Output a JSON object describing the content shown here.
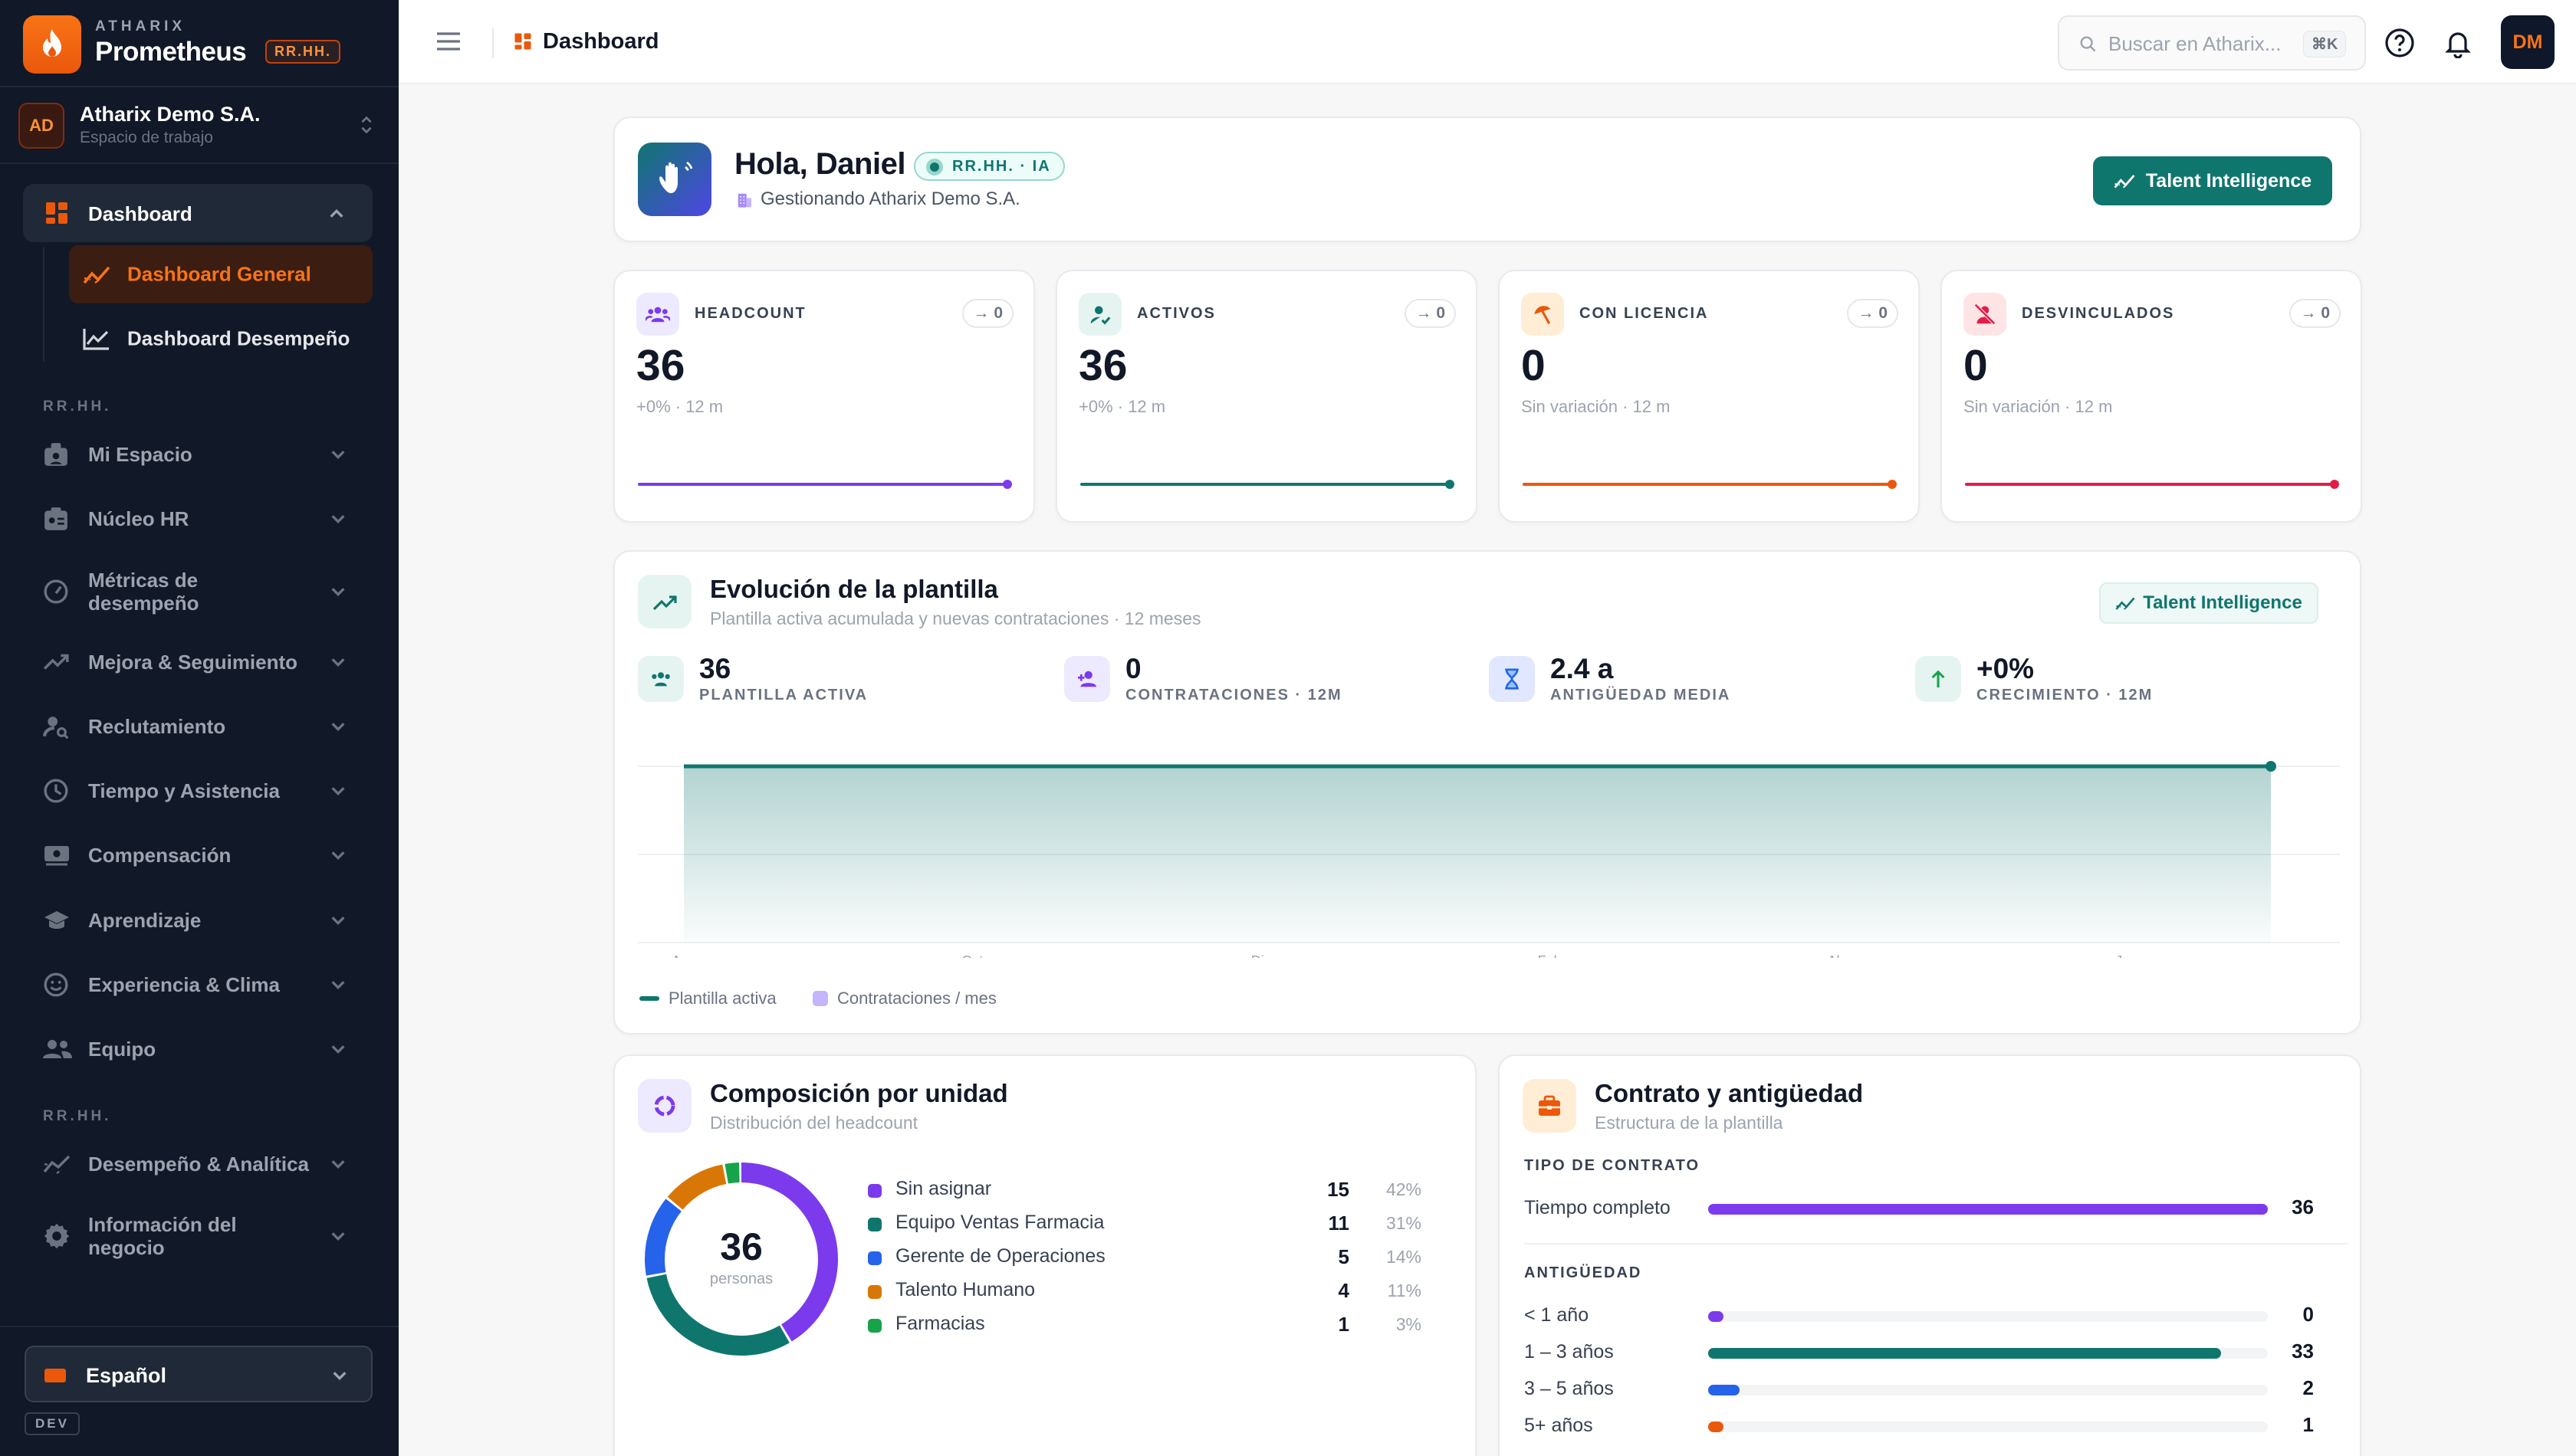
{
  "brand": {
    "company": "ATHARIX",
    "name": "Prometheus",
    "badge": "RR.HH."
  },
  "workspace": {
    "initials": "AD",
    "name": "Atharix Demo S.A.",
    "subtitle": "Espacio de trabajo"
  },
  "sidebar": {
    "dashboard_label": "Dashboard",
    "sub_items": [
      {
        "label": "Dashboard General",
        "icon": "trend-icon",
        "active": true
      },
      {
        "label": "Dashboard Desempeño",
        "icon": "chart-line-icon",
        "active": false
      }
    ],
    "section_1": "RR.HH.",
    "items": [
      {
        "label": "Mi Espacio",
        "icon": "id-badge-icon"
      },
      {
        "label": "Núcleo HR",
        "icon": "id-card-icon"
      },
      {
        "label": "Métricas de desempeño",
        "icon": "gauge-icon"
      },
      {
        "label": "Mejora & Seguimiento",
        "icon": "trending-up-icon"
      },
      {
        "label": "Reclutamiento",
        "icon": "person-search-icon"
      },
      {
        "label": "Tiempo y Asistencia",
        "icon": "clock-icon"
      },
      {
        "label": "Compensación",
        "icon": "money-icon"
      },
      {
        "label": "Aprendizaje",
        "icon": "graduation-cap-icon"
      },
      {
        "label": "Experiencia & Clima",
        "icon": "smile-icon"
      },
      {
        "label": "Equipo",
        "icon": "group-icon"
      }
    ],
    "section_2": "RR.HH.",
    "items_2": [
      {
        "label": "Desempeño & Analítica",
        "icon": "analytics-icon"
      },
      {
        "label": "Información del negocio",
        "icon": "settings-icon"
      }
    ],
    "language": "Español",
    "env_badge": "DEV"
  },
  "header": {
    "title": "Dashboard",
    "search_placeholder": "Buscar en Atharix...",
    "search_shortcut": "⌘K",
    "user_initials": "DM"
  },
  "greeting": {
    "title": "Hola, Daniel",
    "badge": "RR.HH. · IA",
    "subtitle": "Gestionando Atharix Demo S.A.",
    "button": "Talent Intelligence"
  },
  "kpis": [
    {
      "label": "HEADCOUNT",
      "value": "36",
      "trend": "0",
      "delta": "+0% · 12 m",
      "color": "#7c3aed"
    },
    {
      "label": "ACTIVOS",
      "value": "36",
      "trend": "0",
      "delta": "+0% · 12 m",
      "color": "#0f766e"
    },
    {
      "label": "CON LICENCIA",
      "value": "0",
      "trend": "0",
      "delta": "Sin variación · 12 m",
      "color": "#ea580c"
    },
    {
      "label": "DESVINCULADOS",
      "value": "0",
      "trend": "0",
      "delta": "Sin variación · 12 m",
      "color": "#e11d48"
    }
  ],
  "evolution": {
    "title": "Evolución de la plantilla",
    "subtitle": "Plantilla activa acumulada y nuevas contrataciones · 12 meses",
    "chip": "Talent Intelligence",
    "stats": [
      {
        "value": "36",
        "label": "PLANTILLA ACTIVA"
      },
      {
        "value": "0",
        "label": "CONTRATACIONES · 12M"
      },
      {
        "value": "2.4 a",
        "label": "ANTIGÜEDAD MEDIA"
      },
      {
        "value": "+0%",
        "label": "CRECIMIENTO · 12M"
      }
    ],
    "legend": {
      "active": "Plantilla activa",
      "hires": "Contrataciones / mes"
    }
  },
  "chart_data": {
    "type": "area",
    "x": [
      "Ago",
      "Sep",
      "Oct",
      "Nov",
      "Dic",
      "Ene",
      "Feb",
      "Mar",
      "Abr",
      "May",
      "Jun",
      "Jul"
    ],
    "x_tick_labels": [
      "Ago",
      "Oct",
      "Dic",
      "Feb",
      "Abr",
      "Jun"
    ],
    "series": [
      {
        "name": "Plantilla activa",
        "type": "area",
        "values": [
          36,
          36,
          36,
          36,
          36,
          36,
          36,
          36,
          36,
          36,
          36,
          36
        ],
        "color": "#0f766e"
      },
      {
        "name": "Contrataciones / mes",
        "type": "bar",
        "values": [
          0,
          0,
          0,
          0,
          0,
          0,
          0,
          0,
          0,
          0,
          0,
          0
        ],
        "color": "#c4b5fd"
      }
    ],
    "ylim": [
      0,
      36
    ],
    "grid": true,
    "legend": "bottom-left"
  },
  "composition": {
    "title": "Composición por unidad",
    "subtitle": "Distribución del headcount",
    "center_value": "36",
    "center_label": "personas",
    "rows": [
      {
        "name": "Sin asignar",
        "value": 15,
        "value_text": "15",
        "pct": "42%",
        "color": "#7c3aed"
      },
      {
        "name": "Equipo Ventas Farmacia",
        "value": 11,
        "value_text": "11",
        "pct": "31%",
        "color": "#0f766e"
      },
      {
        "name": "Gerente de Operaciones",
        "value": 5,
        "value_text": "5",
        "pct": "14%",
        "color": "#2563eb"
      },
      {
        "name": "Talento Humano",
        "value": 4,
        "value_text": "4",
        "pct": "11%",
        "color": "#d97706"
      },
      {
        "name": "Farmacias",
        "value": 1,
        "value_text": "1",
        "pct": "3%",
        "color": "#16a34a"
      }
    ]
  },
  "contract": {
    "title": "Contrato y antigüedad",
    "subtitle": "Estructura de la plantilla",
    "type_heading": "TIPO DE CONTRATO",
    "types": [
      {
        "label": "Tiempo completo",
        "value": 36,
        "value_text": "36",
        "color": "#7c3aed"
      }
    ],
    "tenure_heading": "ANTIGÜEDAD",
    "tenure": [
      {
        "label": "< 1 año",
        "value": 0,
        "value_text": "0",
        "color": "#7c3aed"
      },
      {
        "label": "1 – 3 años",
        "value": 33,
        "value_text": "33",
        "color": "#0f766e"
      },
      {
        "label": "3 – 5 años",
        "value": 2,
        "value_text": "2",
        "color": "#2563eb"
      },
      {
        "label": "5+ años",
        "value": 1,
        "value_text": "1",
        "color": "#ea580c"
      }
    ],
    "max": 36
  }
}
